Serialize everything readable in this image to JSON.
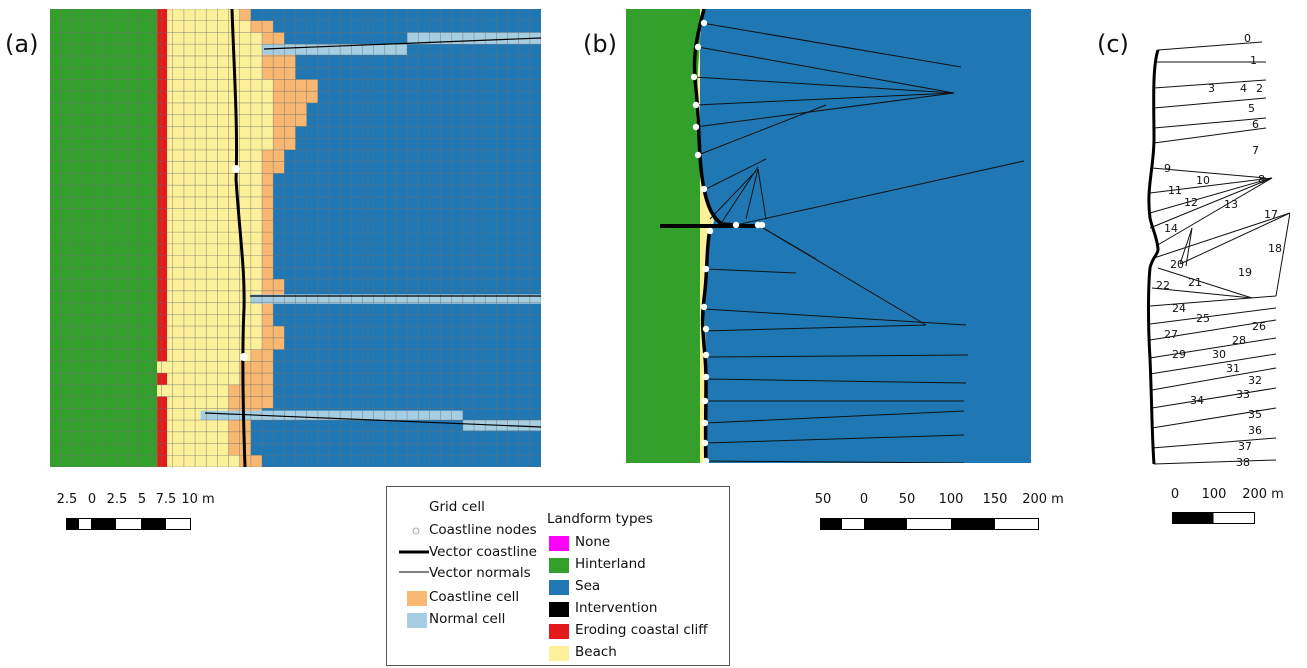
{
  "panels": {
    "a": {
      "label": "(a)"
    },
    "b": {
      "label": "(b)"
    },
    "c": {
      "label": "(c)"
    }
  },
  "scalebars": {
    "a": {
      "ticks": [
        "2.5",
        "0",
        "2.5",
        "5",
        "7.5",
        "10 m"
      ]
    },
    "b": {
      "ticks": [
        "50",
        "0",
        "50",
        "100",
        "150",
        "200 m"
      ]
    },
    "c": {
      "ticks": [
        "0",
        "100",
        "200 m"
      ]
    }
  },
  "legend": {
    "items": [
      {
        "label": "Grid cell",
        "symbol": "grid-cell"
      },
      {
        "label": "Coastline nodes",
        "symbol": "node"
      },
      {
        "label": "Vector coastline",
        "symbol": "thick-line"
      },
      {
        "label": "Vector normals",
        "symbol": "thin-line"
      },
      {
        "label": "Coastline cell",
        "symbol": "swatch",
        "color": "#f9b871"
      },
      {
        "label": "Normal cell",
        "symbol": "swatch",
        "color": "#a6cee3"
      }
    ],
    "landform_title": "Landform types",
    "landforms": [
      {
        "label": "None",
        "color": "#ff00ff"
      },
      {
        "label": "Hinterland",
        "color": "#33a02c"
      },
      {
        "label": "Sea",
        "color": "#1f78b4"
      },
      {
        "label": "Intervention",
        "color": "#000000"
      },
      {
        "label": "Eroding coastal cliff",
        "color": "#e31a1c"
      },
      {
        "label": "Beach",
        "color": "#fcf09a"
      }
    ]
  },
  "normal_numbers": [
    "0",
    "1",
    "2",
    "3",
    "4",
    "5",
    "6",
    "7",
    "8",
    "9",
    "10",
    "11",
    "12",
    "13",
    "14",
    "17",
    "18",
    "19",
    "20",
    "21",
    "22",
    "24",
    "25",
    "26",
    "27",
    "28",
    "29",
    "30",
    "31",
    "32",
    "33",
    "34",
    "35",
    "36",
    "37",
    "38"
  ],
  "colors": {
    "hinterland": "#33a02c",
    "sea": "#1f78b4",
    "beach": "#fcf09a",
    "cliff": "#e31a1c",
    "coastline_cell": "#f9b871",
    "normal_cell": "#a6cee3",
    "intervention": "#000000"
  }
}
